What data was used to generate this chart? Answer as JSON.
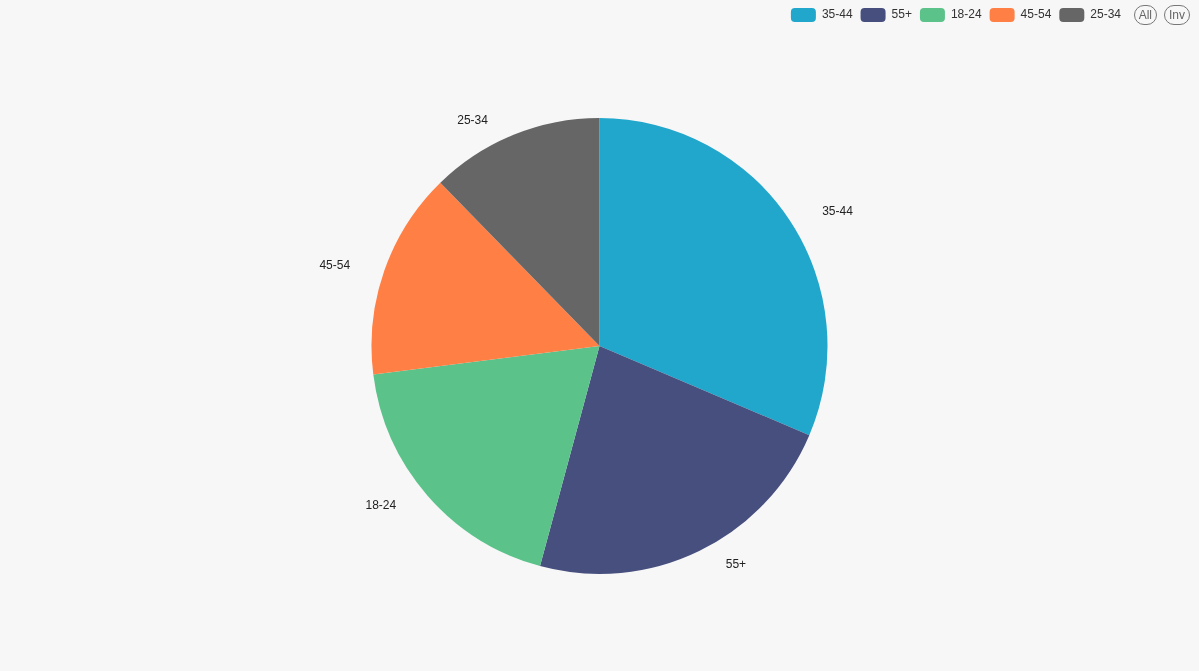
{
  "chart_data": {
    "type": "pie",
    "categories": [
      "35-44",
      "55+",
      "18-24",
      "45-54",
      "25-34"
    ],
    "values": [
      31.4,
      22.8,
      18.8,
      14.7,
      12.3
    ],
    "colors": [
      "#21a7cc",
      "#464f7d",
      "#5bc28a",
      "#ff7f45",
      "#666666"
    ],
    "legend": "top right",
    "annotations": [
      "All",
      "Inv"
    ]
  }
}
